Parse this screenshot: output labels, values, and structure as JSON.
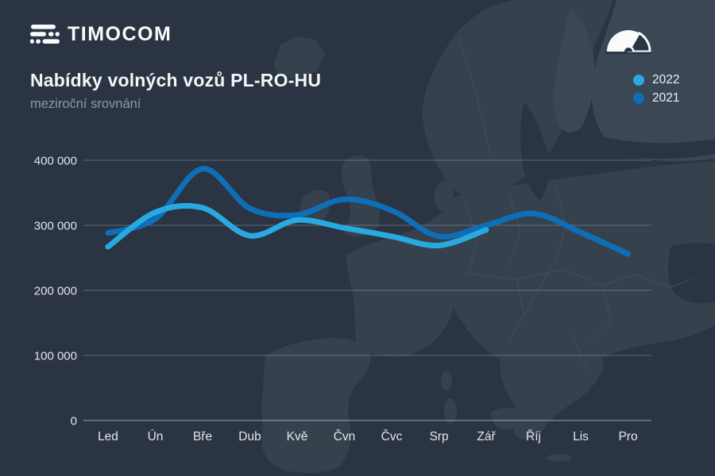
{
  "brand": {
    "name": "TIMOCOM",
    "icon": "road-lines-icon"
  },
  "header": {
    "title": "Nabídky volných vozů PL-RO-HU",
    "subtitle": "meziroční srovnání"
  },
  "gauge_icon": "speedometer-gauge-icon",
  "background_art": "europe-map-silhouette",
  "colors": {
    "background": "#2a3442",
    "map_land": "#36414e",
    "map_land_light": "#3b4755",
    "map_border": "#46515f",
    "grid_line": "rgba(190,200,212,0.35)",
    "axis_line": "rgba(214,222,230,0.65)",
    "text_primary": "#f4f6f8",
    "text_muted": "#8d97a8",
    "axis_text": "#e2e6ea",
    "series_2022": "#29a9e1",
    "series_2021": "#0e6fb8"
  },
  "legend": [
    {
      "label": "2022",
      "color": "#29a9e1"
    },
    {
      "label": "2021",
      "color": "#0e6fb8"
    }
  ],
  "chart_data": {
    "type": "line",
    "title": "Nabídky volných vozů PL-RO-HU",
    "subtitle": "meziroční srovnání",
    "xlabel": "",
    "ylabel": "",
    "categories": [
      "Led",
      "Ún",
      "Bře",
      "Dub",
      "Kvě",
      "Čvn",
      "Čvc",
      "Srp",
      "Zář",
      "Říj",
      "Lis",
      "Pro"
    ],
    "series": [
      {
        "name": "2022",
        "color": "#29a9e1",
        "values": [
          267000,
          320000,
          327000,
          284000,
          308000,
          296000,
          283000,
          269000,
          293000,
          null,
          null,
          null
        ]
      },
      {
        "name": "2021",
        "color": "#0e6fb8",
        "values": [
          288000,
          310000,
          387000,
          326000,
          316000,
          340000,
          323000,
          283000,
          300000,
          318000,
          289000,
          256000
        ]
      }
    ],
    "ylim": [
      0,
      400000
    ],
    "yticks": [
      0,
      100000,
      200000,
      300000,
      400000
    ],
    "ytick_labels": [
      "0",
      "100 000",
      "200 000",
      "300 000",
      "400 000"
    ],
    "grid": "horizontal",
    "legend_position": "top-right",
    "line_style": "smooth, round caps, width 7"
  }
}
